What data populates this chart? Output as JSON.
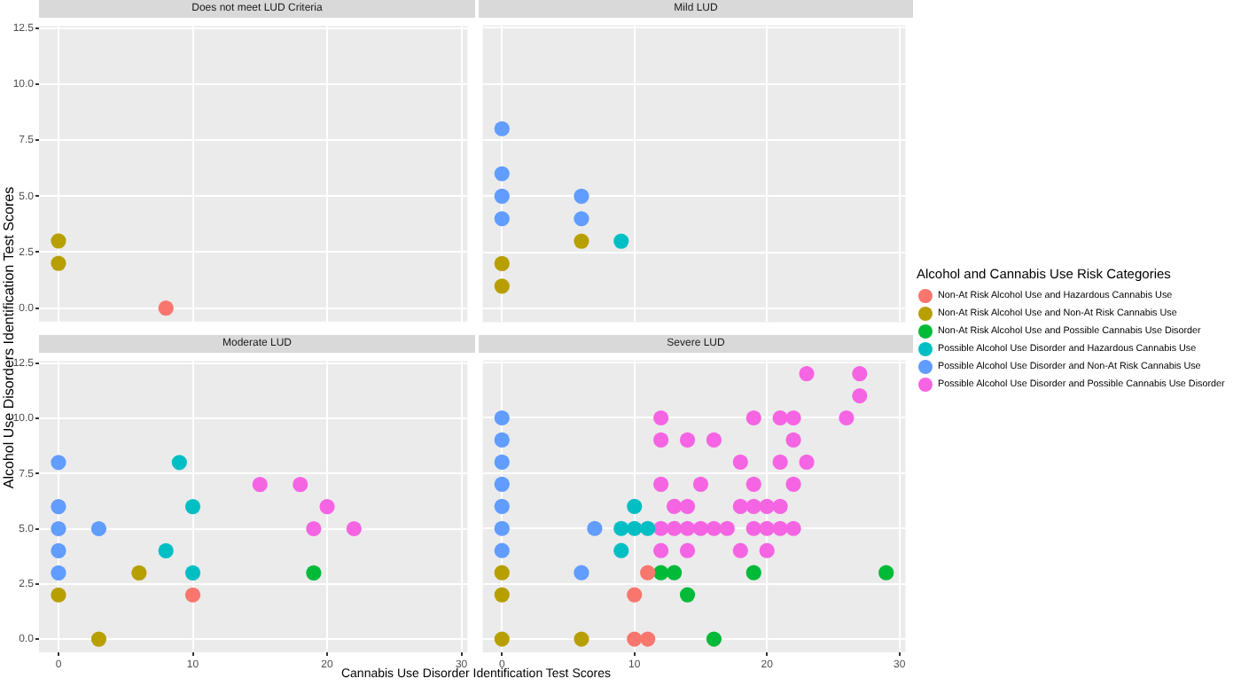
{
  "chart_data": [
    {
      "type": "scatter",
      "title": "Does not meet LUD Criteria",
      "xlim": [
        -1.45,
        30.45
      ],
      "ylim": [
        -0.6,
        12.6
      ],
      "xticks": [
        0,
        10,
        20,
        30
      ],
      "yticks": [
        {
          "value": 0,
          "label": "0.0"
        },
        {
          "value": 2.5,
          "label": "2.5"
        },
        {
          "value": 5,
          "label": "5.0"
        },
        {
          "value": 7.5,
          "label": "7.5"
        },
        {
          "value": 10,
          "label": "10.0"
        },
        {
          "value": 12.5,
          "label": "12.5"
        }
      ],
      "tick_labels": "y",
      "grid": true,
      "marker": "circle",
      "series": [
        {
          "color": "#f8766d",
          "x": [
            8
          ],
          "values": [
            0
          ]
        },
        {
          "color": "#b79f00",
          "x": [
            0,
            0
          ],
          "values": [
            3,
            2
          ]
        }
      ]
    },
    {
      "type": "scatter",
      "title": "Mild LUD",
      "xlim": [
        -1.45,
        30.45
      ],
      "ylim": [
        -0.6,
        12.6
      ],
      "xticks": [
        0,
        10,
        20,
        30
      ],
      "yticks": [
        0,
        2.5,
        5,
        7.5,
        10,
        12.5
      ],
      "tick_labels": false,
      "grid": true,
      "marker": "circle",
      "series": [
        {
          "color": "#b79f00",
          "x": [
            0,
            0,
            6
          ],
          "values": [
            2,
            1,
            3
          ]
        },
        {
          "color": "#00bfc4",
          "x": [
            9
          ],
          "values": [
            3
          ]
        },
        {
          "color": "#619cff",
          "x": [
            0,
            0,
            0,
            0,
            6,
            6
          ],
          "values": [
            8,
            6,
            5,
            4,
            5,
            4
          ]
        }
      ]
    },
    {
      "type": "scatter",
      "title": "Moderate LUD",
      "xlabel": "Cannabis Use Disorder Identification Test Scores",
      "ylabel": "Alcohol Use Disorders Identification Test Scores",
      "xlim": [
        -1.45,
        30.45
      ],
      "ylim": [
        -0.6,
        12.6
      ],
      "xticks": [
        0,
        10,
        20,
        30
      ],
      "yticks": [
        {
          "value": 0,
          "label": "0.0"
        },
        {
          "value": 2.5,
          "label": "2.5"
        },
        {
          "value": 5,
          "label": "5.0"
        },
        {
          "value": 7.5,
          "label": "7.5"
        },
        {
          "value": 10,
          "label": "10.0"
        },
        {
          "value": 12.5,
          "label": "12.5"
        }
      ],
      "grid": true,
      "marker": "circle",
      "series": [
        {
          "color": "#f8766d",
          "x": [
            10
          ],
          "values": [
            2
          ]
        },
        {
          "color": "#b79f00",
          "x": [
            0,
            6,
            3
          ],
          "values": [
            2,
            3,
            0
          ]
        },
        {
          "color": "#00ba38",
          "x": [
            19
          ],
          "values": [
            3
          ]
        },
        {
          "color": "#00bfc4",
          "x": [
            9,
            10,
            8,
            10
          ],
          "values": [
            8,
            6,
            4,
            3
          ]
        },
        {
          "color": "#619cff",
          "x": [
            0,
            0,
            0,
            3,
            0,
            0
          ],
          "values": [
            8,
            6,
            5,
            5,
            4,
            3
          ]
        },
        {
          "color": "#f564e3",
          "x": [
            15,
            18,
            20,
            19,
            22
          ],
          "values": [
            7,
            7,
            6,
            5,
            5
          ]
        }
      ]
    },
    {
      "type": "scatter",
      "title": "Severe LUD",
      "legend": "right",
      "legend_title": "Alcohol and Cannabis Use Risk Categories",
      "xlim": [
        -1.45,
        30.45
      ],
      "ylim": [
        -0.6,
        12.6
      ],
      "xticks": [
        0,
        10,
        20,
        30
      ],
      "yticks": [
        0,
        2.5,
        5,
        7.5,
        10,
        12.5
      ],
      "tick_labels": "x",
      "grid": true,
      "marker": "circle",
      "series": [
        {
          "name": "Non-At Risk Alcohol Use and Hazardous Cannabis Use",
          "color": "#f8766d",
          "x": [
            11,
            10,
            10,
            11
          ],
          "values": [
            3,
            2,
            0,
            0
          ]
        },
        {
          "name": "Non-At Risk Alcohol Use and Non-At Risk Cannabis Use",
          "color": "#b79f00",
          "x": [
            0,
            0,
            0,
            6
          ],
          "values": [
            3,
            2,
            0,
            0
          ]
        },
        {
          "name": "Non-At Risk Alcohol Use and Possible Cannabis Use Disorder",
          "color": "#00ba38",
          "x": [
            12,
            13,
            19,
            29,
            14,
            16
          ],
          "values": [
            3,
            3,
            3,
            3,
            2,
            0
          ]
        },
        {
          "name": "Possible Alcohol Use Disorder and Hazardous Cannabis Use",
          "color": "#00bfc4",
          "x": [
            10,
            9,
            10,
            11,
            9
          ],
          "values": [
            6,
            5,
            5,
            5,
            4
          ]
        },
        {
          "name": "Possible Alcohol Use Disorder and Non-At Risk Cannabis Use",
          "color": "#619cff",
          "x": [
            0,
            0,
            0,
            0,
            0,
            0,
            7,
            0,
            6
          ],
          "values": [
            10,
            9,
            8,
            7,
            6,
            5,
            5,
            4,
            3
          ]
        },
        {
          "name": "Possible Alcohol Use Disorder and Possible Cannabis Use Disorder",
          "color": "#f564e3",
          "x": [
            23,
            27,
            27,
            12,
            19,
            21,
            22,
            26,
            12,
            14,
            16,
            22,
            18,
            21,
            23,
            12,
            15,
            19,
            22,
            13,
            14,
            18,
            19,
            20,
            21,
            12,
            13,
            14,
            15,
            16,
            17,
            19,
            20,
            21,
            22,
            12,
            14,
            18,
            20
          ],
          "values": [
            12,
            12,
            11,
            10,
            10,
            10,
            10,
            10,
            9,
            9,
            9,
            9,
            8,
            8,
            8,
            7,
            7,
            7,
            7,
            6,
            6,
            6,
            6,
            6,
            6,
            5,
            5,
            5,
            5,
            5,
            5,
            5,
            5,
            5,
            5,
            4,
            4,
            4,
            4
          ]
        }
      ]
    }
  ]
}
